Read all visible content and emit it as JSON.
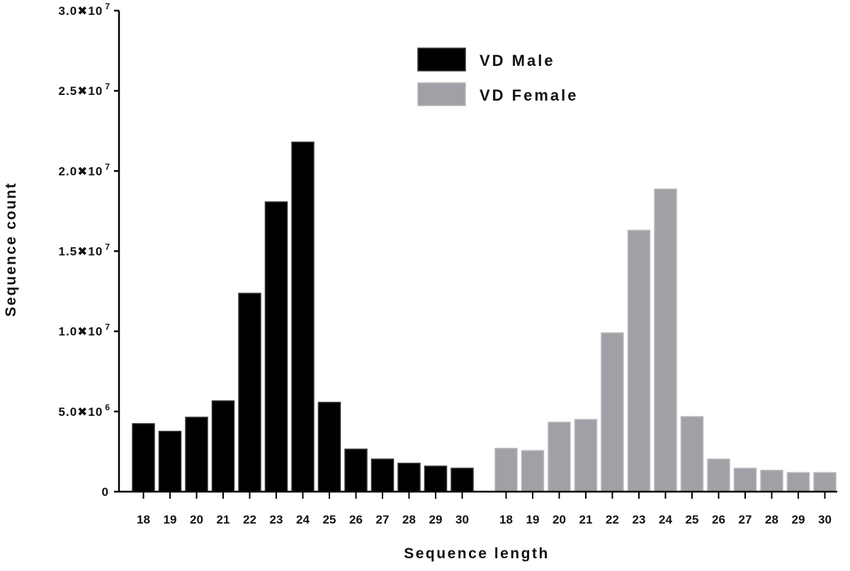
{
  "chart_data": {
    "type": "bar",
    "title": "",
    "xlabel": "Sequence length",
    "ylabel": "Sequence count",
    "ylim": [
      0,
      30000000
    ],
    "yticks": [
      {
        "value": 0,
        "label": "0",
        "exp": ""
      },
      {
        "value": 5000000,
        "label": "5.0✖10",
        "exp": "6"
      },
      {
        "value": 10000000,
        "label": "1.0✖10",
        "exp": "7"
      },
      {
        "value": 15000000,
        "label": "1.5✖10",
        "exp": "7"
      },
      {
        "value": 20000000,
        "label": "2.0✖10",
        "exp": "7"
      },
      {
        "value": 25000000,
        "label": "2.5✖10",
        "exp": "7"
      },
      {
        "value": 30000000,
        "label": "3.0✖10",
        "exp": "7"
      }
    ],
    "grid": false,
    "legend_position": "top-center",
    "categories": [
      "18",
      "19",
      "20",
      "21",
      "22",
      "23",
      "24",
      "25",
      "26",
      "27",
      "28",
      "29",
      "30"
    ],
    "series": [
      {
        "name": "VD Male",
        "color": "#000000",
        "values": [
          4240000,
          3760000,
          4640000,
          5660000,
          12370000,
          18070000,
          21800000,
          5570000,
          2650000,
          2030000,
          1770000,
          1590000,
          1460000
        ]
      },
      {
        "name": "VD Female",
        "color": "#a0a0a6",
        "values": [
          2700000,
          2560000,
          4330000,
          4500000,
          9900000,
          16300000,
          18870000,
          4680000,
          2030000,
          1460000,
          1330000,
          1190000,
          1190000
        ]
      }
    ]
  }
}
